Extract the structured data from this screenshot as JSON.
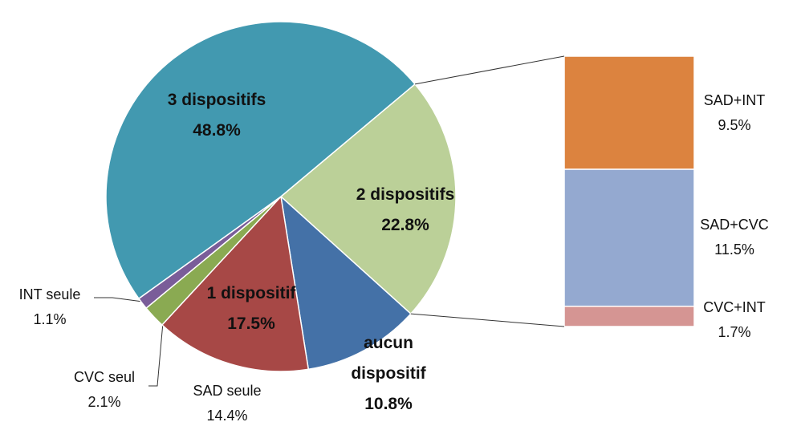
{
  "chart_data": {
    "type": "pie-of-bar",
    "slices": [
      {
        "name": "2 dispositifs",
        "value": 22.8,
        "value_label": "22.8%",
        "color": "#bbd098"
      },
      {
        "name": "aucun dispositif",
        "value": 10.8,
        "value_label": "10.8%",
        "color": "#4471a7"
      },
      {
        "name": "SAD seule",
        "value": 14.4,
        "value_label": "14.4%",
        "color": "#a74846"
      },
      {
        "name": "CVC seul",
        "value": 2.1,
        "value_label": "2.1%",
        "color": "#8aaa52"
      },
      {
        "name": "INT seule",
        "value": 1.1,
        "value_label": "1.1%",
        "color": "#7a5d99"
      },
      {
        "name": "3 dispositifs",
        "value": 48.8,
        "value_label": "48.8%",
        "color": "#4299b0"
      }
    ],
    "annotations": [
      {
        "text": "1 dispositif",
        "value": 17.5,
        "label": "17.5%"
      }
    ],
    "bar": {
      "categories": [
        "SAD+INT",
        "SAD+CVC",
        "CVC+INT"
      ],
      "values": [
        9.5,
        11.5,
        1.7
      ],
      "value_labels": [
        "9.5%",
        "11.5%",
        "1.7%"
      ],
      "colors": [
        "#dc833f",
        "#94a9d0",
        "#d59593"
      ]
    }
  }
}
